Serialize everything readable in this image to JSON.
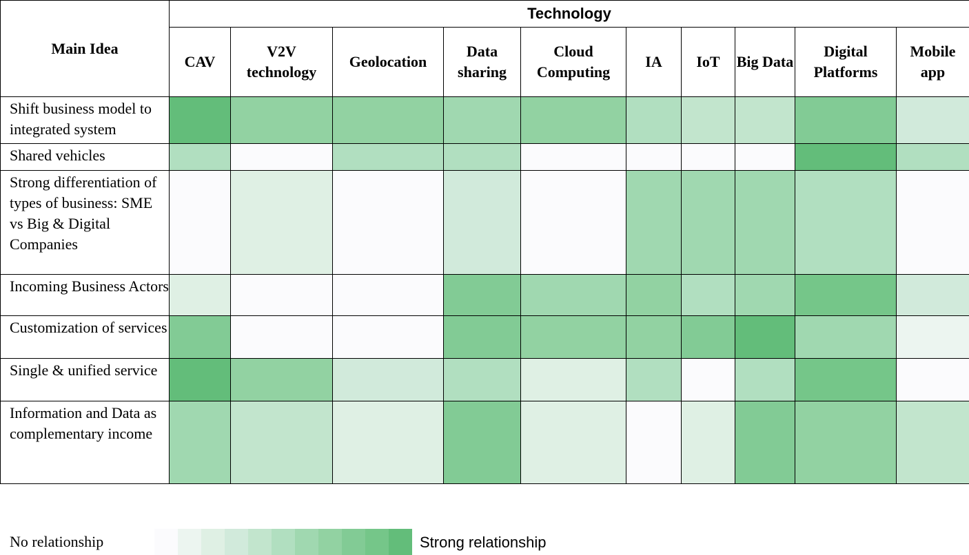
{
  "chart_data": {
    "type": "heatmap",
    "title": "Technology",
    "row_header": "Main Idea",
    "columns": [
      "CAV",
      "V2V technology",
      "Geolocation",
      "Data sharing",
      "Cloud Computing",
      "IA",
      "IoT",
      "Big Data",
      "Digital Platforms",
      "Mobile app"
    ],
    "rows": [
      "Shift business model to integrated system",
      "Shared vehicles",
      "Strong differentiation of types of business: SME vs Big & Digital Companies",
      "Incoming Business Actors",
      "Customization of services",
      "Single & unified service",
      "Information and Data as complementary income"
    ],
    "values": [
      [
        10,
        7,
        7,
        6,
        7,
        5,
        4,
        4,
        8,
        3
      ],
      [
        5,
        0,
        5,
        5,
        0,
        0,
        0,
        0,
        10,
        5
      ],
      [
        0,
        2,
        0,
        3,
        0,
        6,
        6,
        6,
        5,
        0
      ],
      [
        2,
        0,
        0,
        8,
        6,
        7,
        5,
        6,
        9,
        3
      ],
      [
        8,
        0,
        0,
        8,
        7,
        7,
        8,
        10,
        6,
        1
      ],
      [
        10,
        7,
        3,
        5,
        2,
        5,
        0,
        5,
        9,
        0
      ],
      [
        6,
        4,
        2,
        8,
        2,
        0,
        2,
        8,
        7,
        4
      ]
    ],
    "scale_min": 0,
    "scale_max": 10,
    "legend": {
      "low_label": "No relationship",
      "high_label": "Strong relationship",
      "steps": [
        0,
        1,
        2,
        3,
        4,
        5,
        6,
        7,
        8,
        9,
        10
      ]
    },
    "colors": [
      "#fbfbfd",
      "#ecf5f0",
      "#dff0e4",
      "#d1eadb",
      "#c2e5cd",
      "#b1dfc0",
      "#a0d8b0",
      "#92d2a2",
      "#82cb95",
      "#75c689",
      "#63bd7a"
    ]
  }
}
